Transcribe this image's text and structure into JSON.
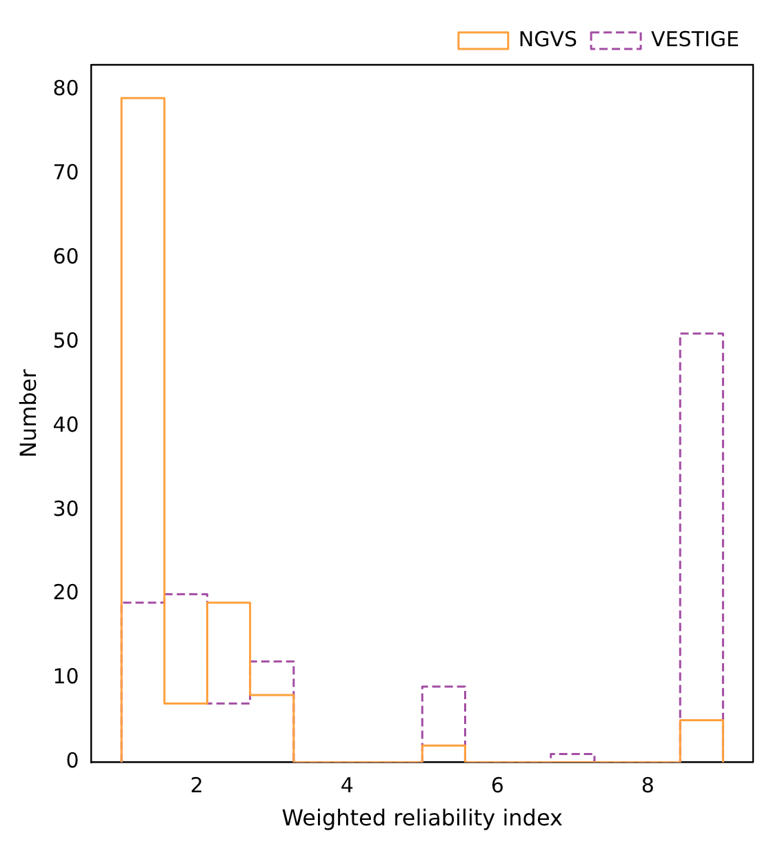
{
  "chart_data": {
    "type": "histogram",
    "xlabel": "Weighted reliability index",
    "ylabel": "Number",
    "bins": [
      1,
      1.57,
      2.14,
      2.71,
      3.29,
      3.86,
      4.43,
      5,
      5.57,
      6.14,
      6.71,
      7.29,
      7.86,
      8.43,
      9
    ],
    "series": [
      {
        "name": "NGVS",
        "color": "#ffa03c",
        "line_style": "solid",
        "values": [
          79,
          7,
          19,
          8,
          0,
          0,
          0,
          2,
          0,
          0,
          0,
          0,
          0,
          5
        ]
      },
      {
        "name": "VESTIGE",
        "color": "#a34ca3",
        "line_style": "dashed",
        "values": [
          19,
          20,
          7,
          12,
          0,
          0,
          0,
          9,
          0,
          0,
          1,
          0,
          0,
          51
        ]
      }
    ],
    "xlim": [
      0.6,
      9.4
    ],
    "ylim": [
      0,
      82.95
    ],
    "xticks": [
      2,
      4,
      6,
      8
    ],
    "yticks": [
      0,
      10,
      20,
      30,
      40,
      50,
      60,
      70,
      80
    ],
    "grid": false,
    "legend": "top right"
  }
}
